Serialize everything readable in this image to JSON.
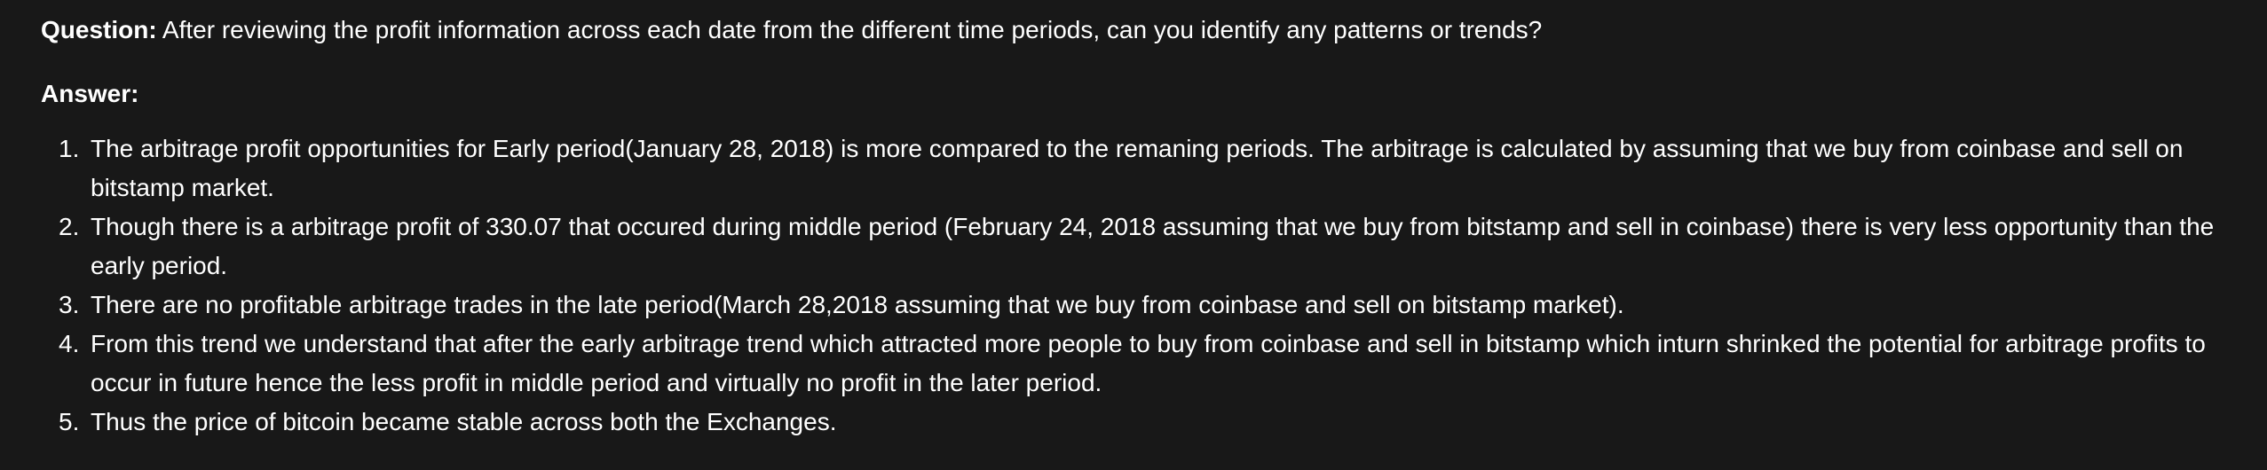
{
  "question": {
    "label": "Question:",
    "text": "After reviewing the profit information across each date from the different time periods, can you identify any patterns or trends?"
  },
  "answer": {
    "label": "Answer:",
    "items": [
      {
        "num": "1.",
        "text": "The arbitrage profit opportunities for Early period(January 28, 2018) is more compared to the remaning periods. The arbitrage is calculated by assuming that we buy from coinbase and sell on bitstamp market."
      },
      {
        "num": "2.",
        "text": "Though there is a arbitrage profit of 330.07 that occured during middle period (February 24, 2018 assuming that we buy from bitstamp and sell in coinbase) there is very less opportunity than the early period."
      },
      {
        "num": "3.",
        "text": "There are no profitable arbitrage trades in the late period(March 28,2018 assuming that we buy from coinbase and sell on bitstamp market)."
      },
      {
        "num": "4.",
        "text": "From this trend we understand that after the early arbitrage trend which attracted more people to buy from coinbase and sell in bitstamp which inturn shrinked the potential for arbitrage profits to occur in future hence the less profit in middle period and virtually no profit in the later period."
      },
      {
        "num": "5.",
        "text": "Thus the price of bitcoin became stable across both the Exchanges."
      }
    ]
  }
}
